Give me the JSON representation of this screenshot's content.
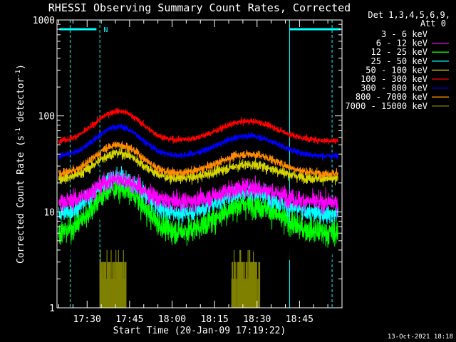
{
  "chart_data": {
    "type": "line",
    "title": "RHESSI Observing Summary Count Rates, Corrected",
    "xlabel": "Start Time (20-Jan-09 17:19:22)",
    "ylabel_parts": {
      "main": "Corrected Count Rate (s",
      "exp1": "-1",
      "mid": " detector",
      "exp2": "-1",
      "end": ")"
    },
    "x_ticks": [
      {
        "label": "17:30",
        "min": 30
      },
      {
        "label": "17:45",
        "min": 45
      },
      {
        "label": "18:00",
        "min": 60
      },
      {
        "label": "18:15",
        "min": 75
      },
      {
        "label": "18:30",
        "min": 90
      },
      {
        "label": "18:45",
        "min": 105
      }
    ],
    "y_ticks": [
      {
        "label": "1",
        "value": 1
      },
      {
        "label": "10",
        "value": 10
      },
      {
        "label": "100",
        "value": 100
      },
      {
        "label": "1000",
        "value": 1000
      }
    ],
    "xlim_minutes": [
      19.37,
      120
    ],
    "ylim": [
      1,
      1000
    ],
    "y_scale": "log",
    "grid": false,
    "legend_placement": "right",
    "legend_header": [
      "Det 1,3,4,5,6,9,",
      "Att 0"
    ],
    "series": [
      {
        "name": "3 - 6 keV",
        "color": "#000000",
        "base": 4.5,
        "peak1": 13,
        "peak2": 7,
        "noise": 0.18
      },
      {
        "name": "6 - 12 keV",
        "color": "#ff00ff",
        "base": 12.5,
        "peak1": 22,
        "peak2": 18,
        "noise": 0.09
      },
      {
        "name": "12 - 25 keV",
        "color": "#00ff00",
        "base": 6,
        "peak1": 18,
        "peak2": 12,
        "noise": 0.12
      },
      {
        "name": "25 - 50 keV",
        "color": "#00ffff",
        "base": 9.5,
        "peak1": 23,
        "peak2": 16,
        "noise": 0.09
      },
      {
        "name": "50 - 100 keV",
        "color": "#d4d400",
        "base": 22,
        "peak1": 41,
        "peak2": 31,
        "noise": 0.05
      },
      {
        "name": "100 - 300 keV",
        "color": "#ff0000",
        "base": 55,
        "peak1": 112,
        "peak2": 88,
        "noise": 0.03
      },
      {
        "name": "300 - 800 keV",
        "color": "#0000ff",
        "base": 38,
        "peak1": 77,
        "peak2": 62,
        "noise": 0.03
      },
      {
        "name": "800 - 7000 keV",
        "color": "#ff8c00",
        "base": 25,
        "peak1": 50,
        "peak2": 40,
        "noise": 0.04
      },
      {
        "name": "7000 - 15000 keV",
        "color": "#808000",
        "base": 0,
        "peak1": 0,
        "peak2": 0,
        "noise": 0
      }
    ],
    "annotations": {
      "cyan_flag_color": "#00ffff",
      "night_label": "N",
      "vlines_min": [
        24,
        34.5,
        116.5
      ],
      "solid_vline_min": 101.5,
      "night_bar_min": [
        20.2,
        33.3
      ],
      "day_bar_min": [
        101.5,
        119.5
      ],
      "bar_value": 800,
      "highenergy_bursts_min": [
        [
          34.5,
          43.8
        ],
        [
          81,
          91
        ]
      ]
    },
    "footer_date": "13-Oct-2021 18:18"
  }
}
